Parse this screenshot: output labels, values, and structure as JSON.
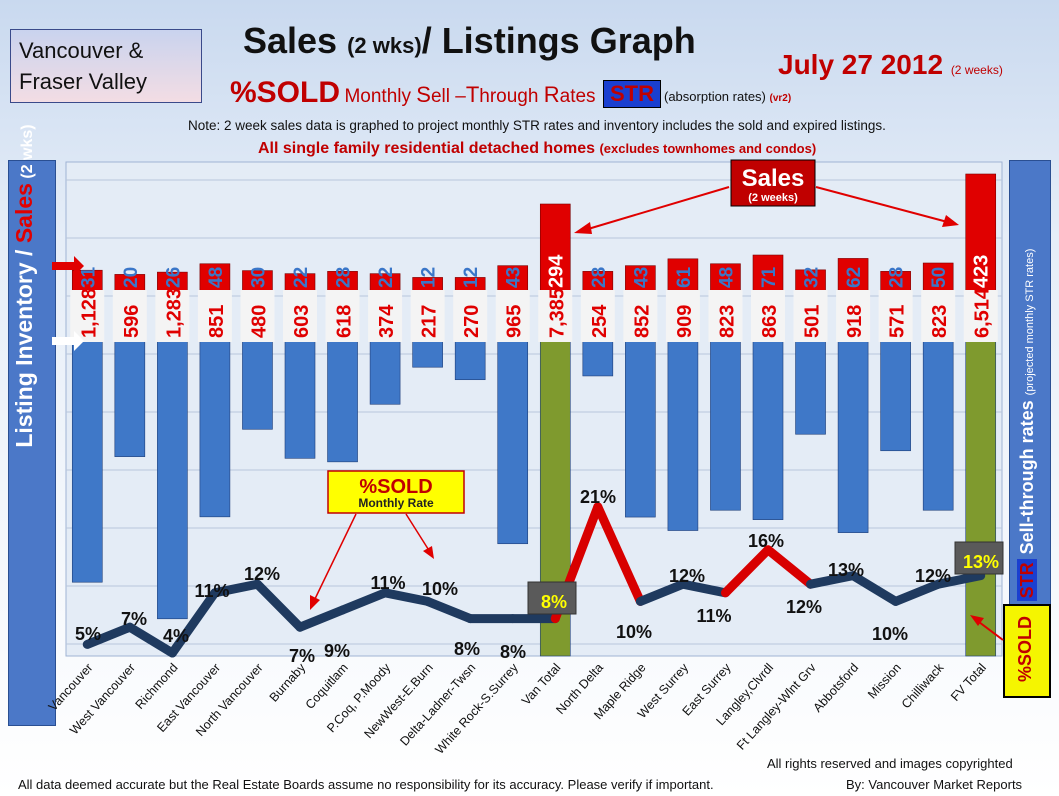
{
  "header": {
    "region_line1": "Vancouver &",
    "region_line2": "Fraser Valley",
    "title_main": "Sales",
    "title_paren": "(2 wks)",
    "title_rest": "/ Listings Graph",
    "date_main": "July 27 2012",
    "date_note": "(2 weeks)",
    "sold_big": "%SOLD",
    "sold_mid_1": "Monthly ",
    "sold_S": "S",
    "sold_mid_2": "ell –",
    "sold_T": "T",
    "sold_mid_3": "hrough ",
    "sold_R": "R",
    "sold_mid_4": "ates",
    "str_badge": "STR",
    "absorption": "(absorption rates)",
    "version": "(vr2)",
    "note": "Note: 2 week sales data is graphed to project monthly STR rates and inventory includes the sold and expired listings.",
    "scope_main": "All single family residential detached homes",
    "scope_paren": "(excludes townhomes and condos)"
  },
  "left_axis": {
    "part1": "Listing Inventory / ",
    "part2": "Sales",
    "part3": " (2 wks)"
  },
  "right_axis": {
    "str": "STR",
    "label": " Sell-through rates ",
    "note": "(projected monthly STR rates)"
  },
  "sold_badge": "%SOLD",
  "footer": {
    "rights": "All rights reserved and  images copyrighted",
    "disclaimer": "All data deemed accurate but the Real Estate Boards assume no responsibility for its accuracy.  Please verify if important.",
    "credit": "By: Vancouver Market Reports"
  },
  "colors": {
    "inventory_bar": "#3f78c8",
    "total_bar": "#7f9a2e",
    "sales_bar": "#e00000",
    "line": "#1f3a5f",
    "line_peak": "#d80000"
  },
  "chart_data": {
    "type": "bar",
    "categories": [
      "Vancouver",
      "West Vancouver",
      "Richmond",
      "East Vancouver",
      "North Vancouver",
      "Burnaby",
      "Coquitlam",
      "P.Coq, P.Moody",
      "NewWest-E.Burn",
      "Delta-Ladner-Twsn",
      "White Rock-S.Surrey",
      "Van Total",
      "North Delta",
      "Maple Ridge",
      "West Surrey",
      "East Surrey",
      "Langley,Clvrdl",
      "Ft Langley-Wlnt Grv",
      "Abbotsford",
      "Mission",
      "Chilliwack",
      "FV Total"
    ],
    "series": [
      {
        "name": "Sales",
        "values": [
          31,
          20,
          26,
          48,
          30,
          22,
          28,
          22,
          12,
          12,
          43,
          294,
          28,
          43,
          61,
          48,
          71,
          32,
          62,
          28,
          50,
          423
        ]
      },
      {
        "name": "Listing Inventory",
        "values": [
          1128,
          596,
          1283,
          851,
          480,
          603,
          618,
          374,
          217,
          270,
          965,
          7385,
          254,
          852,
          909,
          823,
          863,
          501,
          918,
          571,
          823,
          6514
        ]
      },
      {
        "name": "%SOLD",
        "values": [
          5,
          7,
          4,
          11,
          12,
          7,
          9,
          11,
          10,
          8,
          8,
          8,
          21,
          10,
          12,
          11,
          16,
          12,
          13,
          10,
          12,
          13
        ]
      }
    ],
    "value_labels_sales": [
      "31",
      "20",
      "26",
      "48",
      "30",
      "22",
      "28",
      "22",
      "12",
      "12",
      "43",
      "294",
      "28",
      "43",
      "61",
      "48",
      "71",
      "32",
      "62",
      "28",
      "50",
      "423"
    ],
    "value_labels_inventory": [
      "1,128",
      "596",
      "1,283",
      "851",
      "480",
      "603",
      "618",
      "374",
      "217",
      "270",
      "965",
      "7,385",
      "254",
      "852",
      "909",
      "823",
      "863",
      "501",
      "918",
      "571",
      "823",
      "6,514"
    ],
    "value_labels_pct": [
      "5%",
      "7%",
      "4%",
      "11%",
      "12%",
      "7%",
      "9%",
      "11%",
      "10%",
      "8%",
      "8%",
      "8%",
      "21%",
      "10%",
      "12%",
      "11%",
      "16%",
      "12%",
      "13%",
      "10%",
      "12%",
      "13%"
    ],
    "annotations": {
      "sales_title": "Sales",
      "sales_sub": "(2 weeks)",
      "sold_title": "%SOLD",
      "sold_sub": "Monthly Rate"
    }
  }
}
